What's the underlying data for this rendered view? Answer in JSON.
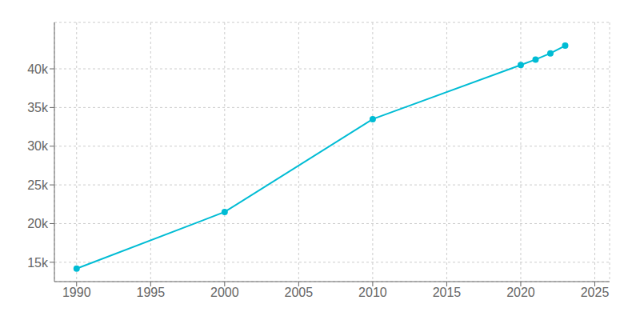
{
  "chart_data": {
    "type": "line",
    "x": [
      1990,
      2000,
      2010,
      2020,
      2021,
      2022,
      2023
    ],
    "values": [
      14178,
      21500,
      33500,
      40500,
      41200,
      42000,
      43000
    ],
    "color": "#00bcd4",
    "marker": "circle",
    "xlim": [
      1988.5,
      2026
    ],
    "ylim": [
      12500,
      46000
    ],
    "xticks": [
      1990,
      1995,
      2000,
      2005,
      2010,
      2015,
      2020,
      2025
    ],
    "yticks": [
      {
        "value": 15000,
        "label": "15k"
      },
      {
        "value": 20000,
        "label": "20k"
      },
      {
        "value": 25000,
        "label": "25k"
      },
      {
        "value": 30000,
        "label": "30k"
      },
      {
        "value": 35000,
        "label": "35k"
      },
      {
        "value": 40000,
        "label": "40k"
      }
    ],
    "grid": true
  }
}
